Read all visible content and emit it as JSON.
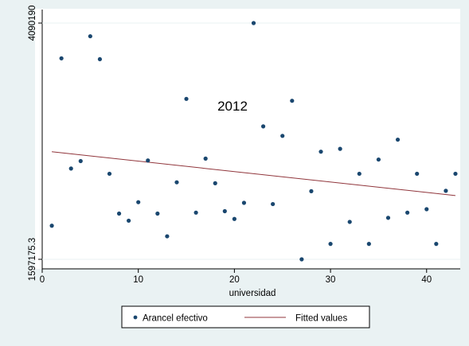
{
  "chart_data": {
    "type": "scatter",
    "title": "",
    "annotation": "2012",
    "xlabel": "universidad",
    "ylabel": "",
    "xlim": [
      0,
      43.5
    ],
    "ylim": [
      1597175.3,
      4090190
    ],
    "x_ticks": [
      0,
      10,
      20,
      30,
      40
    ],
    "x_tick_labels": [
      "0",
      "10",
      "20",
      "30",
      "40"
    ],
    "y_ticks": [
      1597175.3,
      4090190
    ],
    "y_tick_labels": [
      "1597175.3",
      "4090190"
    ],
    "grid": false,
    "legend_position": "bottom",
    "colors": {
      "background": "#eaf2f3",
      "plot": "#ffffff",
      "points": "#1a476f",
      "fit": "#90353b"
    },
    "series": [
      {
        "name": "Arancel efectivo",
        "type": "scatter",
        "x": [
          1,
          2,
          3,
          4,
          5,
          6,
          7,
          8,
          9,
          10,
          11,
          12,
          13,
          14,
          15,
          16,
          17,
          18,
          19,
          20,
          21,
          22,
          23,
          24,
          25,
          26,
          27,
          28,
          29,
          30,
          31,
          32,
          33,
          34,
          35,
          36,
          37,
          38,
          39,
          40,
          41,
          42,
          43
        ],
        "y": [
          1952000,
          3718000,
          2555000,
          2634000,
          3951000,
          3709000,
          2500000,
          2080000,
          2005000,
          2200000,
          2640000,
          2080000,
          1840000,
          2410000,
          3290000,
          2090000,
          2660000,
          2400000,
          2105000,
          2023000,
          2193000,
          4090190,
          3000000,
          2180000,
          2900000,
          3270000,
          1597175.3,
          2316000,
          2733000,
          1760000,
          2763000,
          1992000,
          2500000,
          1760000,
          2650000,
          2035000,
          2860000,
          2090000,
          2500000,
          2126000,
          1760000,
          2320000,
          2500000
        ]
      },
      {
        "name": "Fitted values",
        "type": "line",
        "x": [
          1,
          43
        ],
        "y": [
          2732000,
          2270000
        ]
      }
    ]
  }
}
